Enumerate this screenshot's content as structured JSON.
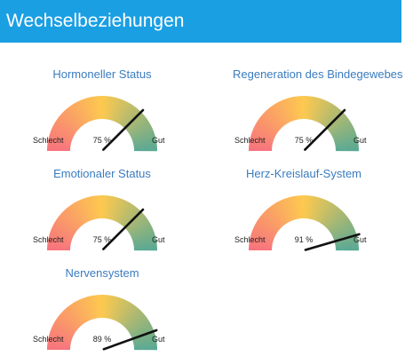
{
  "header": {
    "title": "Wechselbeziehungen"
  },
  "gauges": [
    {
      "title": "Hormoneller Status",
      "percent": 75,
      "value_text": "75 %",
      "low_label": "Schlecht",
      "high_label": "Gut"
    },
    {
      "title": "Regeneration des Bindegewebes",
      "percent": 75,
      "value_text": "75 %",
      "low_label": "Schlecht",
      "high_label": "Gut"
    },
    {
      "title": "Emotionaler Status",
      "percent": 75,
      "value_text": "75 %",
      "low_label": "Schlecht",
      "high_label": "Gut"
    },
    {
      "title": "Herz-Kreislauf-System",
      "percent": 91,
      "value_text": "91 %",
      "low_label": "Schlecht",
      "high_label": "Gut"
    },
    {
      "title": "Nervensystem",
      "percent": 89,
      "value_text": "89 %",
      "low_label": "Schlecht",
      "high_label": "Gut"
    }
  ],
  "colors": {
    "header_bg": "#1a9fe3",
    "title_text": "#3a7cbf",
    "gauge_low": "#f7737d",
    "gauge_mid": "#fdc94e",
    "gauge_high": "#58a894",
    "needle": "#111111"
  }
}
